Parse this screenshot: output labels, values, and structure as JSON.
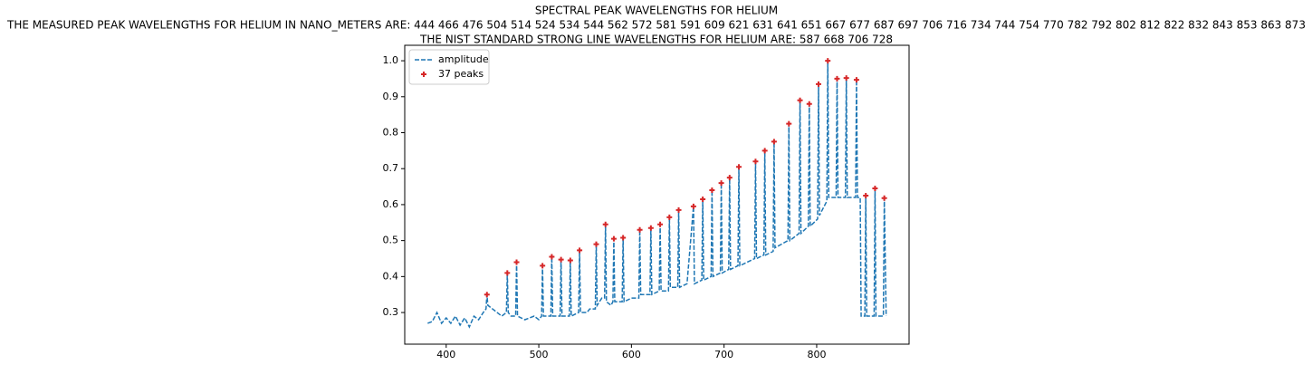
{
  "chart_data": {
    "type": "line",
    "title": [
      "SPECTRAL PEAK WAVELENGTHS FOR HELIUM",
      "THE MEASURED PEAK WAVELENGTHS FOR HELIUM IN NANO_METERS ARE: 444 466 476 504 514 524 534 544 562 572 581 591 609 621 631 641 651 667 677 687 697 706 716 734 744 754 770 782 792 802 812 822 832 843 853 863 873",
      "THE NIST STANDARD STRONG LINE WAVELENGTHS FOR HELIUM ARE: 587 668 706 728"
    ],
    "xlim": [
      355.25,
      899.75
    ],
    "ylim": [
      0.212,
      1.043
    ],
    "xticks": [
      400,
      500,
      600,
      700,
      800
    ],
    "yticks": [
      0.3,
      0.4,
      0.5,
      0.6,
      0.7,
      0.8,
      0.9,
      {
        "value": 1,
        "label": "1.0"
      }
    ],
    "grid": false,
    "legend": "upper left",
    "series": [
      {
        "name": "amplitude",
        "type": "line",
        "color": "#1f77b4",
        "dashed": true,
        "x": [
          380,
          385,
          390,
          395,
          400,
          405,
          410,
          415,
          420,
          425,
          430,
          435,
          440,
          443,
          444,
          445,
          450,
          455,
          460,
          465,
          466,
          467,
          470,
          475,
          476,
          477,
          485,
          495,
          500,
          503,
          504,
          505,
          513,
          514,
          515,
          523,
          524,
          525,
          533,
          534,
          535,
          543,
          544,
          545,
          552,
          555,
          561,
          562,
          563,
          568,
          571,
          572,
          573,
          578,
          580,
          581,
          582,
          590,
          591,
          592,
          600,
          608,
          609,
          610,
          620,
          621,
          622,
          630,
          631,
          632,
          640,
          641,
          642,
          650,
          651,
          652,
          660,
          667,
          668,
          676,
          677,
          678,
          686,
          687,
          688,
          696,
          697,
          698,
          705,
          706,
          707,
          715,
          716,
          717,
          725,
          733,
          734,
          735,
          743,
          744,
          745,
          753,
          754,
          755,
          762,
          769,
          770,
          771,
          781,
          782,
          783,
          791,
          792,
          793,
          801,
          802,
          803,
          811,
          812,
          813,
          821,
          822,
          823,
          831,
          832,
          833,
          842,
          843,
          844,
          847,
          848,
          852,
          853,
          854,
          862,
          863,
          864,
          872,
          873,
          875
        ],
        "values": [
          0.27,
          0.275,
          0.3,
          0.27,
          0.285,
          0.27,
          0.29,
          0.265,
          0.285,
          0.26,
          0.29,
          0.28,
          0.3,
          0.31,
          0.35,
          0.32,
          0.31,
          0.3,
          0.29,
          0.3,
          0.41,
          0.3,
          0.29,
          0.29,
          0.44,
          0.29,
          0.28,
          0.29,
          0.28,
          0.29,
          0.43,
          0.29,
          0.29,
          0.455,
          0.29,
          0.29,
          0.447,
          0.29,
          0.29,
          0.445,
          0.29,
          0.3,
          0.473,
          0.3,
          0.3,
          0.31,
          0.31,
          0.49,
          0.32,
          0.34,
          0.34,
          0.545,
          0.33,
          0.32,
          0.33,
          0.505,
          0.33,
          0.33,
          0.508,
          0.33,
          0.34,
          0.34,
          0.53,
          0.35,
          0.35,
          0.535,
          0.35,
          0.36,
          0.545,
          0.36,
          0.36,
          0.565,
          0.37,
          0.37,
          0.585,
          0.37,
          0.38,
          0.595,
          0.38,
          0.39,
          0.615,
          0.39,
          0.4,
          0.64,
          0.4,
          0.41,
          0.66,
          0.41,
          0.42,
          0.675,
          0.42,
          0.43,
          0.705,
          0.43,
          0.44,
          0.45,
          0.72,
          0.45,
          0.46,
          0.75,
          0.46,
          0.47,
          0.775,
          0.48,
          0.49,
          0.5,
          0.825,
          0.5,
          0.52,
          0.89,
          0.52,
          0.54,
          0.88,
          0.54,
          0.56,
          0.935,
          0.57,
          0.61,
          1.0,
          0.62,
          0.62,
          0.95,
          0.62,
          0.62,
          0.952,
          0.62,
          0.62,
          0.947,
          0.62,
          0.62,
          0.29,
          0.29,
          0.625,
          0.29,
          0.29,
          0.645,
          0.29,
          0.29,
          0.618,
          0.29
        ]
      },
      {
        "name": "37 peaks",
        "type": "scatter",
        "color": "#d62728",
        "marker": "+",
        "x": [
          444,
          466,
          476,
          504,
          514,
          524,
          534,
          544,
          562,
          572,
          581,
          591,
          609,
          621,
          631,
          641,
          651,
          667,
          677,
          687,
          697,
          706,
          716,
          734,
          744,
          754,
          770,
          782,
          792,
          802,
          812,
          822,
          832,
          843,
          853,
          863,
          873
        ],
        "values": [
          0.35,
          0.41,
          0.44,
          0.43,
          0.455,
          0.447,
          0.445,
          0.473,
          0.49,
          0.545,
          0.505,
          0.508,
          0.53,
          0.535,
          0.545,
          0.565,
          0.585,
          0.595,
          0.615,
          0.64,
          0.66,
          0.675,
          0.705,
          0.72,
          0.75,
          0.775,
          0.825,
          0.89,
          0.88,
          0.935,
          1.0,
          0.95,
          0.952,
          0.947,
          0.625,
          0.645,
          0.618
        ]
      }
    ]
  }
}
